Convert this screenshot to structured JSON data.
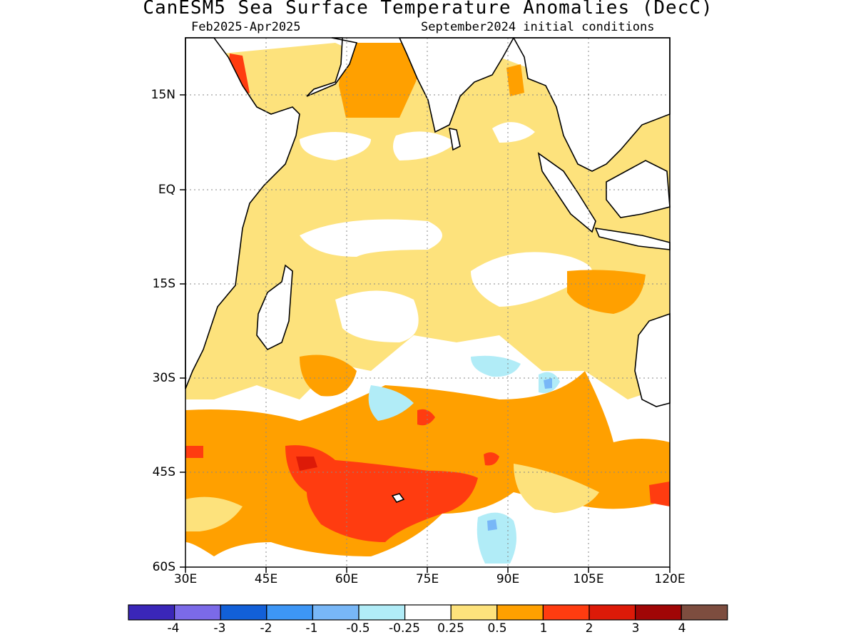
{
  "title": "CanESM5 Sea Surface Temperature Anomalies (DecC)",
  "subtitle_left": "Feb2025-Apr2025",
  "subtitle_right": "September2024 initial conditions",
  "y_ticks": [
    "15N",
    "EQ",
    "15S",
    "30S",
    "45S",
    "60S"
  ],
  "x_ticks": [
    "30E",
    "45E",
    "60E",
    "75E",
    "90E",
    "105E",
    "120E"
  ],
  "colorbar": {
    "colors": [
      "#3a26b8",
      "#7b6ae8",
      "#1260d8",
      "#3d96f5",
      "#78b7f7",
      "#b1ecf7",
      "#ffffff",
      "#fde27c",
      "#ffa000",
      "#ff3c10",
      "#dd1a08",
      "#a00606",
      "#7d4d3f"
    ],
    "labels": [
      "-4",
      "-3",
      "-2",
      "-1",
      "-0.5",
      "-0.25",
      "0.25",
      "0.5",
      "1",
      "2",
      "3",
      "4"
    ]
  },
  "legend_colors": {
    "pale_yellow": "#fde27c",
    "orange": "#ffa000",
    "red_orange": "#ff3c10",
    "red": "#dd1a08",
    "light_cyan": "#b1ecf7",
    "light_blue": "#78b7f7"
  }
}
